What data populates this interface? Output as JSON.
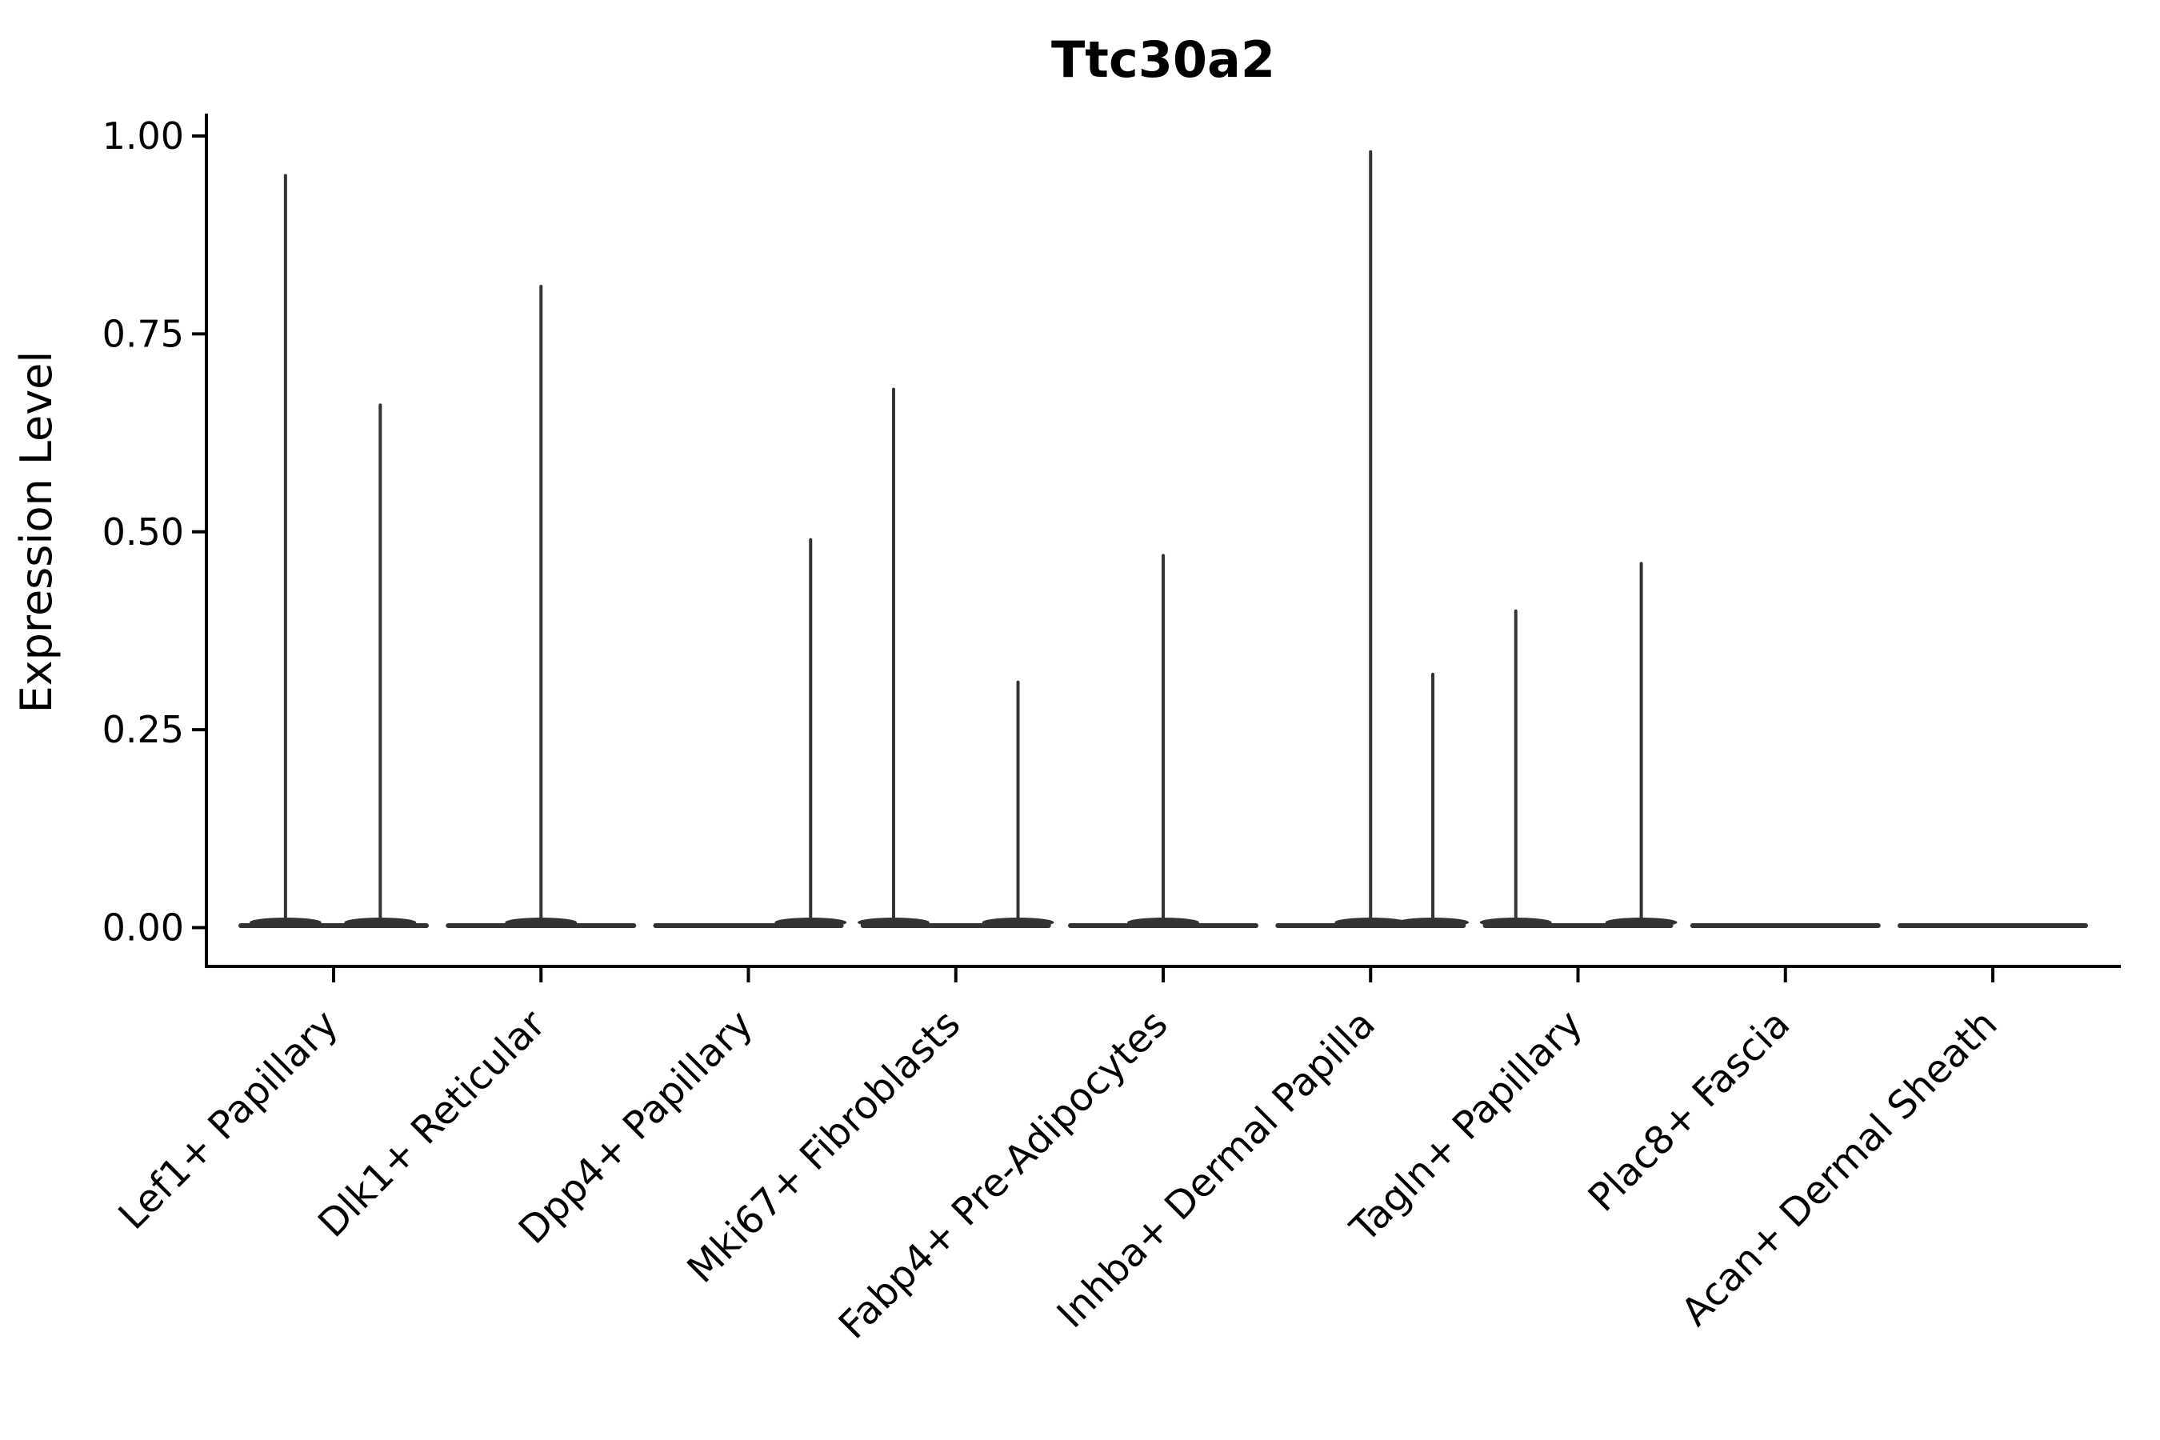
{
  "chart_data": {
    "type": "violin",
    "title": "Ttc30a2",
    "ylabel": "Expression Level",
    "xlabel": "",
    "ylim": [
      0,
      1
    ],
    "yticks": [
      0.0,
      0.25,
      0.5,
      0.75,
      1.0
    ],
    "ytick_labels": [
      "0.00",
      "0.25",
      "0.50",
      "0.75",
      "1.00"
    ],
    "x_tick_rotation_deg": 45,
    "grid": false,
    "legend": false,
    "violin_color": "#333333",
    "axis_color": "#000000",
    "categories": [
      "Lef1+ Papillary",
      "Dlk1+ Reticular",
      "Dpp4+ Papillary",
      "Mki67+ Fibroblasts",
      "Fabp4+ Pre-Adipocytes",
      "Inhba+ Dermal Papilla",
      "Tagln+ Papillary",
      "Plac8+ Fascia",
      "Acan+ Dermal Sheath"
    ],
    "series": [
      {
        "category": "Lef1+ Papillary",
        "spikes": [
          {
            "offset": -0.232,
            "max": 0.95
          },
          {
            "offset": 0.225,
            "max": 0.66
          }
        ]
      },
      {
        "category": "Dlk1+ Reticular",
        "spikes": [
          {
            "offset": 0.0,
            "max": 0.81
          }
        ]
      },
      {
        "category": "Dpp4+ Papillary",
        "spikes": [
          {
            "offset": 0.3,
            "max": 0.49
          }
        ]
      },
      {
        "category": "Mki67+ Fibroblasts",
        "spikes": [
          {
            "offset": -0.3,
            "max": 0.68
          },
          {
            "offset": 0.3,
            "max": 0.31
          }
        ]
      },
      {
        "category": "Fabp4+ Pre-Adipocytes",
        "spikes": [
          {
            "offset": 0.0,
            "max": 0.47
          }
        ]
      },
      {
        "category": "Inhba+ Dermal Papilla",
        "spikes": [
          {
            "offset": 0.0,
            "max": 0.98
          },
          {
            "offset": 0.3,
            "max": 0.32
          }
        ]
      },
      {
        "category": "Tagln+ Papillary",
        "spikes": [
          {
            "offset": -0.3,
            "max": 0.4
          },
          {
            "offset": 0.305,
            "max": 0.46
          }
        ]
      },
      {
        "category": "Plac8+ Fascia",
        "spikes": []
      },
      {
        "category": "Acan+ Dermal Sheath",
        "spikes": []
      }
    ]
  }
}
